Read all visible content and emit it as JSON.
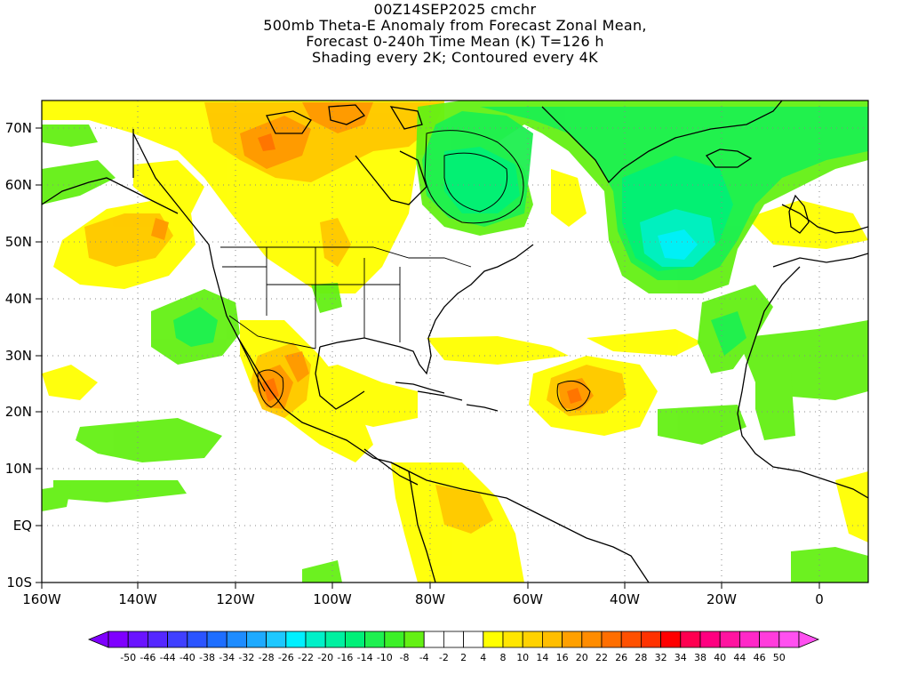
{
  "title": {
    "line1": "00Z14SEP2025 cmchr",
    "line2": "500mb Theta-E Anomaly from Forecast Zonal Mean,",
    "line3": "Forecast 0-240h Time Mean (K) T=126 h",
    "line4": "Shading every 2K; Contoured every 4K"
  },
  "map": {
    "lon_range": [
      -160,
      10
    ],
    "lat_range": [
      -10,
      75
    ],
    "lon_ticks": [
      "160W",
      "140W",
      "120W",
      "100W",
      "80W",
      "60W",
      "40W",
      "20W",
      "0"
    ],
    "lat_ticks": [
      "10S",
      "EQ",
      "10N",
      "20N",
      "30N",
      "40N",
      "50N",
      "60N",
      "70N"
    ],
    "grid": "dotted"
  },
  "colorbar": {
    "labels": [
      "-50",
      "-46",
      "-44",
      "-40",
      "-38",
      "-34",
      "-32",
      "-28",
      "-26",
      "-22",
      "-20",
      "-16",
      "-14",
      "-10",
      "-8",
      "-4",
      "-2",
      "2",
      "4",
      "8",
      "10",
      "14",
      "16",
      "20",
      "22",
      "26",
      "28",
      "32",
      "34",
      "38",
      "40",
      "44",
      "46",
      "50"
    ],
    "colors": [
      "#7f00ff",
      "#6a14ff",
      "#5528ff",
      "#4040ff",
      "#2b54ff",
      "#1e6eff",
      "#1e8cff",
      "#1eaaff",
      "#1ec8ff",
      "#00f0ff",
      "#00f0c8",
      "#00f0a0",
      "#00f078",
      "#1ef050",
      "#3cf028",
      "#64f014",
      "#ffffff",
      "#ffffff",
      "#ffffff",
      "#ffff00",
      "#ffe600",
      "#ffd200",
      "#ffbe00",
      "#ffa000",
      "#ff8c00",
      "#ff6e00",
      "#ff5000",
      "#ff3200",
      "#ff0000",
      "#ff0050",
      "#ff0080",
      "#ff14a0",
      "#ff28c8",
      "#ff3cdc",
      "#ff50f0"
    ]
  }
}
